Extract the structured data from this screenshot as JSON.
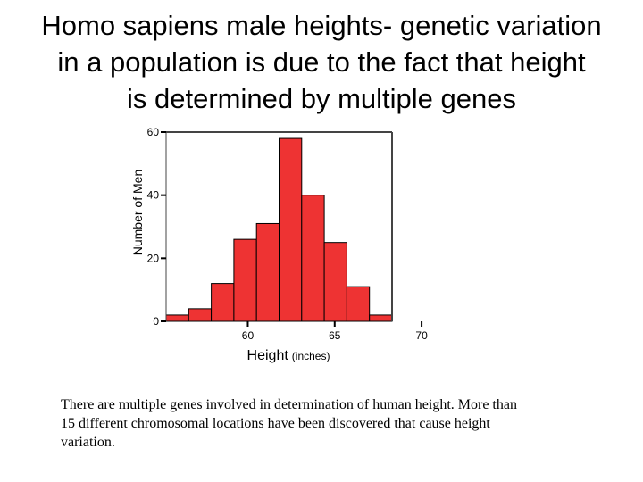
{
  "title_lines": [
    "Homo sapiens male heights- genetic variation",
    "in a population is due to the fact that height",
    "is determined by multiple genes"
  ],
  "caption_lines": [
    "There are multiple genes involved in determination of human height.  More than",
    "15 different chromosomal locations have been discovered that cause height",
    "variation."
  ],
  "chart_data": {
    "type": "bar",
    "title": "",
    "xlabel": "Height",
    "xlabel_unit": "(inches)",
    "ylabel": "Number of Men",
    "bin_width": 1.3,
    "bins": [
      {
        "start": 55.3,
        "value": 2
      },
      {
        "start": 56.6,
        "value": 4
      },
      {
        "start": 57.9,
        "value": 12
      },
      {
        "start": 59.2,
        "value": 26
      },
      {
        "start": 60.5,
        "value": 31
      },
      {
        "start": 61.8,
        "value": 58
      },
      {
        "start": 63.1,
        "value": 40
      },
      {
        "start": 64.4,
        "value": 25
      },
      {
        "start": 65.7,
        "value": 11
      },
      {
        "start": 67.0,
        "value": 2
      }
    ],
    "xlim": [
      55.3,
      68.3
    ],
    "ylim": [
      0,
      60
    ],
    "xticks": [
      60,
      65,
      70
    ],
    "yticks": [
      0,
      20,
      40,
      60
    ],
    "bar_color": "#ee3333",
    "grid": false
  }
}
